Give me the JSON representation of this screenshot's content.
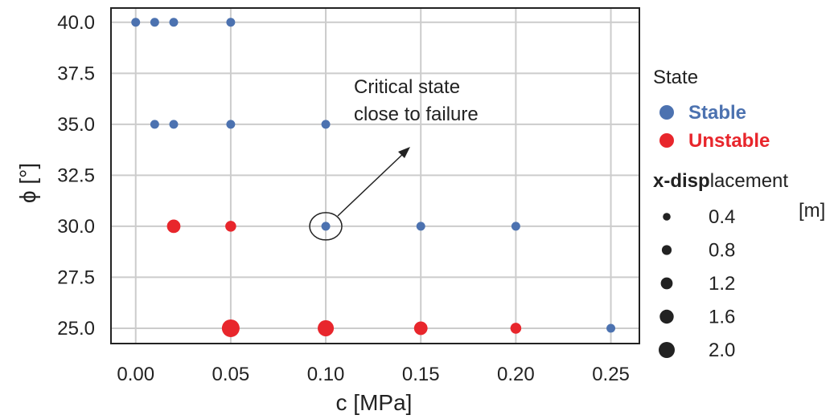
{
  "chart_data": {
    "type": "scatter",
    "xlabel": "c [MPa]",
    "ylabel": "ϕ [°]",
    "xlim": [
      -0.013,
      0.265
    ],
    "ylim": [
      24.25,
      40.7
    ],
    "xticks": [
      "0.00",
      "0.05",
      "0.10",
      "0.15",
      "0.20",
      "0.25"
    ],
    "yticks": [
      "25.0",
      "27.5",
      "30.0",
      "32.5",
      "35.0",
      "37.5",
      "40.0"
    ],
    "grid": true,
    "series": [
      {
        "name": "Stable",
        "color": "#4c72b0",
        "points": [
          {
            "x": 0.0,
            "y": 40.0,
            "disp": 0.3
          },
          {
            "x": 0.01,
            "y": 40.0,
            "disp": 0.3
          },
          {
            "x": 0.02,
            "y": 40.0,
            "disp": 0.3
          },
          {
            "x": 0.05,
            "y": 40.0,
            "disp": 0.3
          },
          {
            "x": 0.01,
            "y": 35.0,
            "disp": 0.3
          },
          {
            "x": 0.02,
            "y": 35.0,
            "disp": 0.3
          },
          {
            "x": 0.05,
            "y": 35.0,
            "disp": 0.3
          },
          {
            "x": 0.1,
            "y": 35.0,
            "disp": 0.3
          },
          {
            "x": 0.1,
            "y": 30.0,
            "disp": 0.3
          },
          {
            "x": 0.15,
            "y": 30.0,
            "disp": 0.3
          },
          {
            "x": 0.2,
            "y": 30.0,
            "disp": 0.3
          },
          {
            "x": 0.25,
            "y": 25.0,
            "disp": 0.3
          }
        ]
      },
      {
        "name": "Unstable",
        "color": "#e8262c",
        "points": [
          {
            "x": 0.02,
            "y": 30.0,
            "disp": 1.2
          },
          {
            "x": 0.05,
            "y": 30.0,
            "disp": 0.7
          },
          {
            "x": 0.05,
            "y": 25.0,
            "disp": 2.0
          },
          {
            "x": 0.1,
            "y": 25.0,
            "disp": 1.7
          },
          {
            "x": 0.15,
            "y": 25.0,
            "disp": 1.2
          },
          {
            "x": 0.2,
            "y": 25.0,
            "disp": 0.7
          }
        ]
      }
    ],
    "annotation": {
      "text_lines": [
        "Critical state",
        "close to failure"
      ],
      "circled_point": {
        "x": 0.1,
        "y": 30.0
      }
    },
    "legend": {
      "placement": "right",
      "state_title": "State",
      "state_entries": [
        {
          "label": "Stable",
          "color": "#4c72b0"
        },
        {
          "label": "Unstable",
          "color": "#e8262c"
        }
      ],
      "size_title_bold": "x-disp",
      "size_title_rest": "lacement",
      "size_unit": "[m]",
      "size_entries": [
        {
          "label": "0.4",
          "value": 0.4
        },
        {
          "label": "0.8",
          "value": 0.8
        },
        {
          "label": "1.2",
          "value": 1.2
        },
        {
          "label": "1.6",
          "value": 1.6
        },
        {
          "label": "2.0",
          "value": 2.0
        }
      ]
    }
  }
}
